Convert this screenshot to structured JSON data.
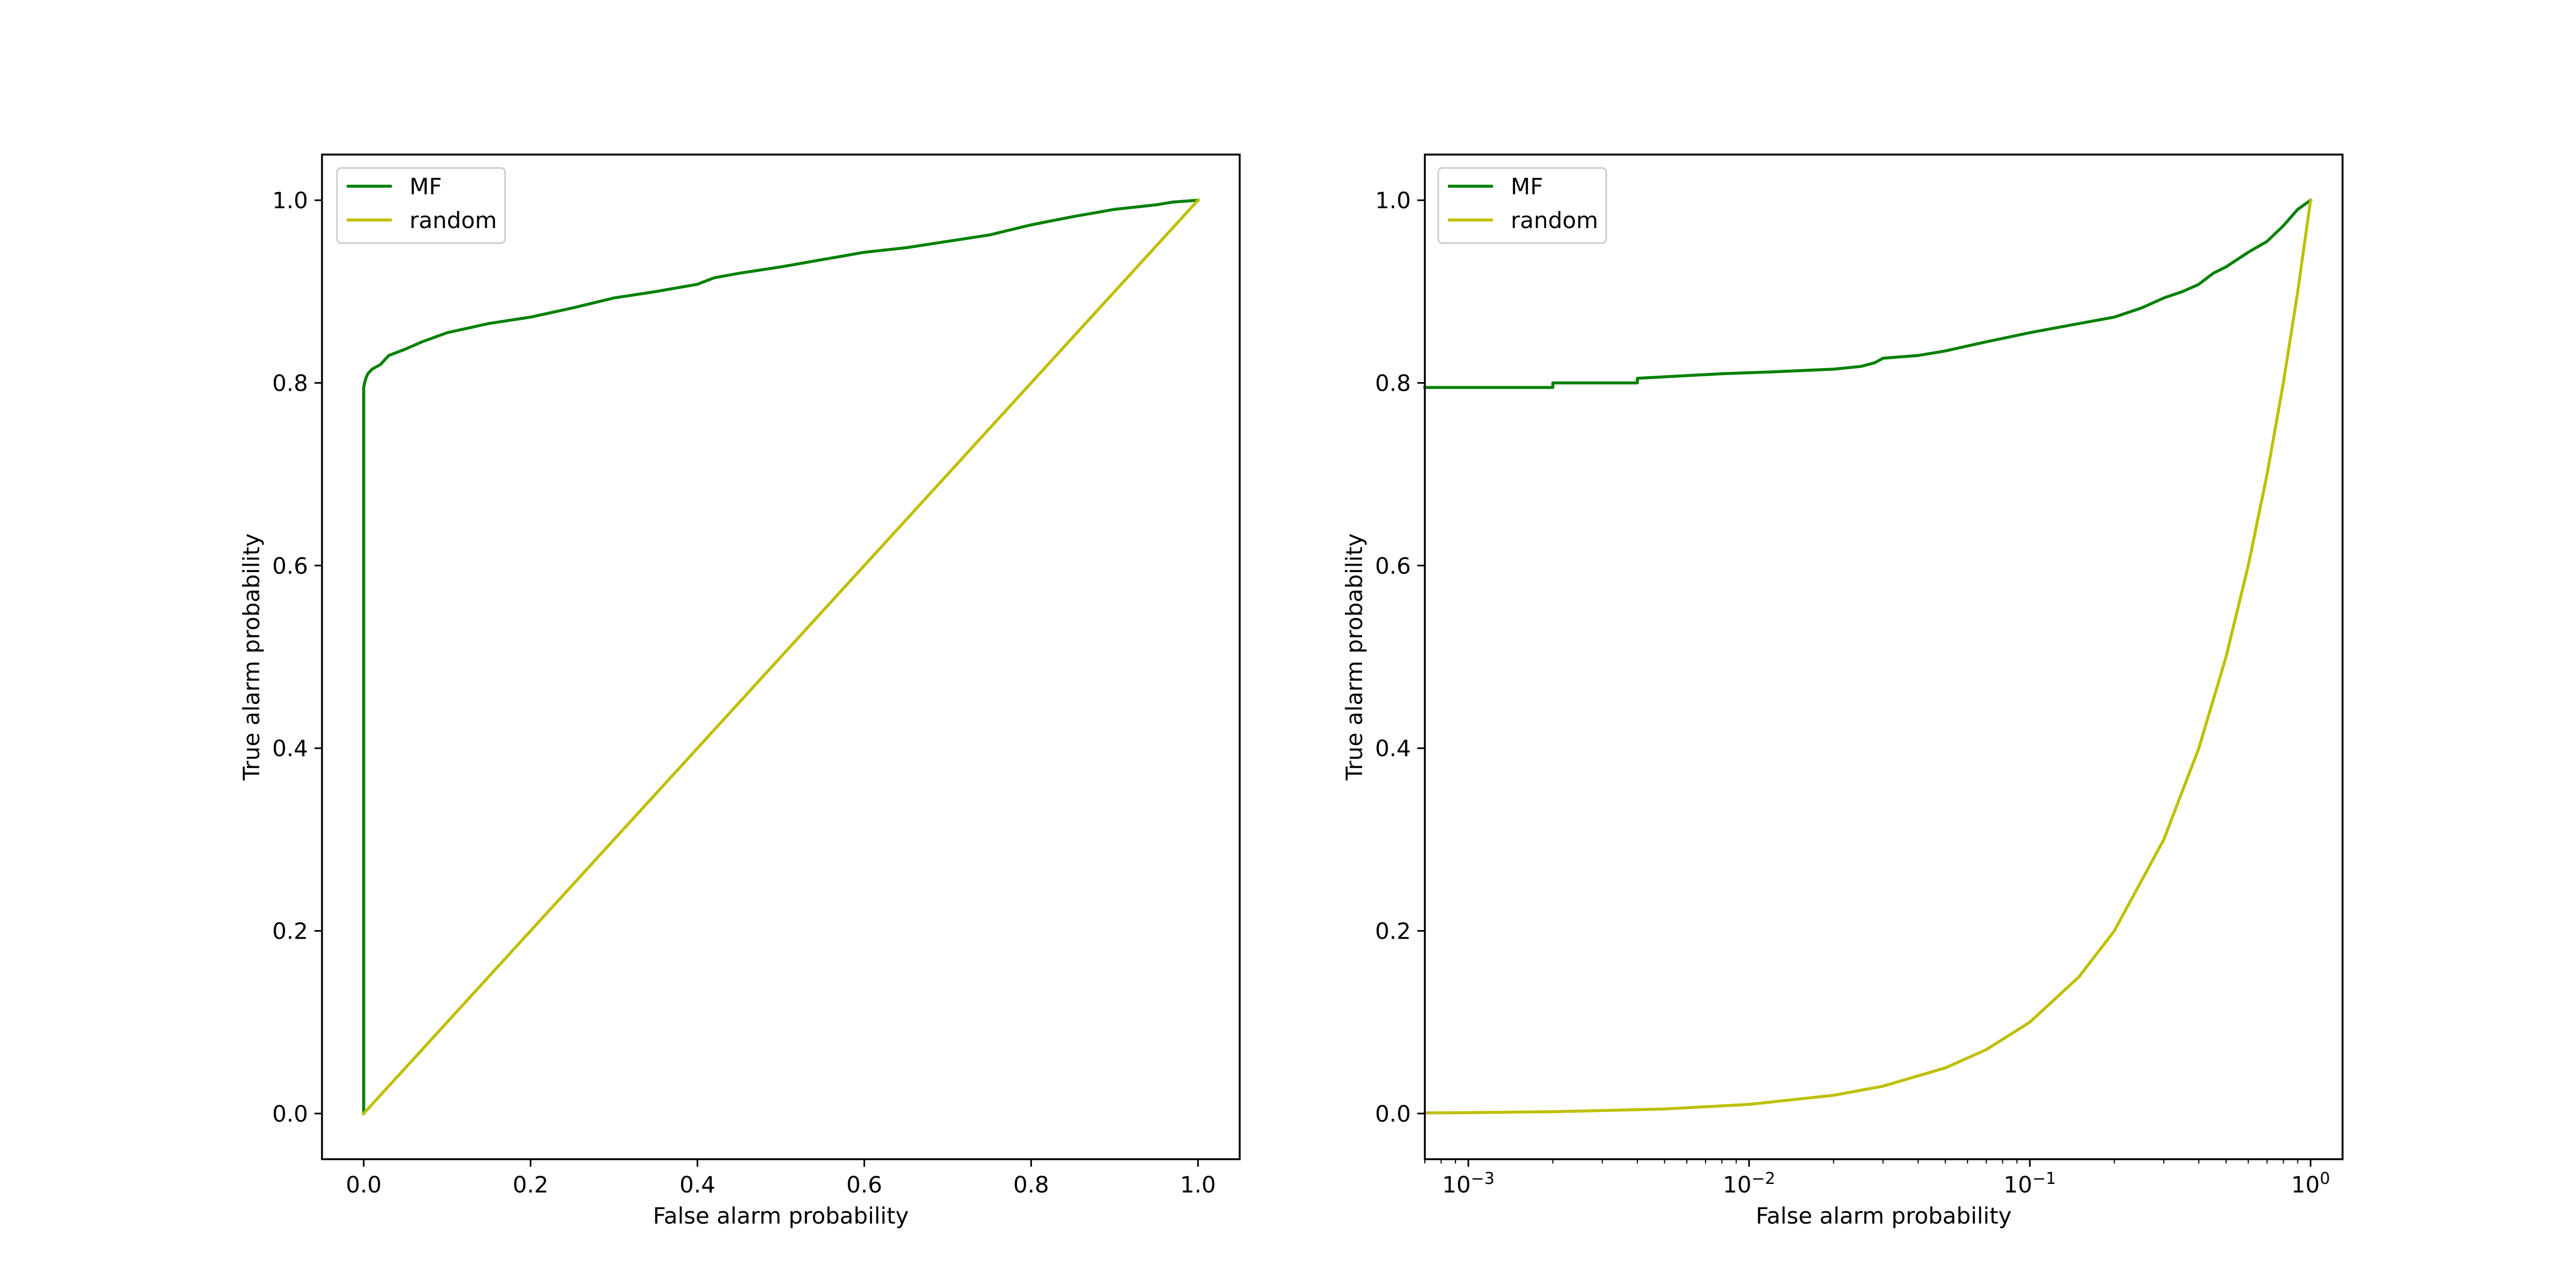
{
  "chart_data": [
    {
      "type": "line",
      "title": "",
      "xlabel": "False alarm probability",
      "ylabel": "True alarm probability",
      "xscale": "linear",
      "xlim": [
        -0.05,
        1.05
      ],
      "ylim": [
        -0.05,
        1.05
      ],
      "xticks": [
        0.0,
        0.2,
        0.4,
        0.6,
        0.8,
        1.0
      ],
      "xtick_labels": [
        "0.0",
        "0.2",
        "0.4",
        "0.6",
        "0.8",
        "1.0"
      ],
      "yticks": [
        0.0,
        0.2,
        0.4,
        0.6,
        0.8,
        1.0
      ],
      "ytick_labels": [
        "0.0",
        "0.2",
        "0.4",
        "0.6",
        "0.8",
        "1.0"
      ],
      "legend": {
        "position": "upper left",
        "entries": [
          "MF",
          "random"
        ]
      },
      "grid": false,
      "series": [
        {
          "name": "MF",
          "color": "#008000",
          "x": [
            0.0,
            0.0,
            0.0,
            0.001,
            0.003,
            0.005,
            0.01,
            0.02,
            0.03,
            0.05,
            0.07,
            0.1,
            0.15,
            0.2,
            0.25,
            0.3,
            0.35,
            0.4,
            0.42,
            0.45,
            0.5,
            0.55,
            0.6,
            0.65,
            0.7,
            0.75,
            0.8,
            0.85,
            0.9,
            0.95,
            0.97,
            1.0
          ],
          "y": [
            0.0,
            0.785,
            0.795,
            0.8,
            0.806,
            0.81,
            0.815,
            0.82,
            0.83,
            0.837,
            0.845,
            0.855,
            0.865,
            0.872,
            0.882,
            0.893,
            0.9,
            0.908,
            0.915,
            0.92,
            0.927,
            0.935,
            0.943,
            0.948,
            0.955,
            0.962,
            0.973,
            0.982,
            0.99,
            0.995,
            0.998,
            1.0
          ]
        },
        {
          "name": "random",
          "color": "#bfbf00",
          "x": [
            0.0,
            1.0
          ],
          "y": [
            0.0,
            1.0
          ]
        }
      ]
    },
    {
      "type": "line",
      "title": "",
      "xlabel": "False alarm probability",
      "ylabel": "True alarm probability",
      "xscale": "log",
      "xlim": [
        0.0007,
        1.3
      ],
      "ylim": [
        -0.05,
        1.05
      ],
      "xticks": [
        0.001,
        0.01,
        0.1,
        1.0
      ],
      "xtick_labels": [
        {
          "base": "10",
          "exp": "−3"
        },
        {
          "base": "10",
          "exp": "−2"
        },
        {
          "base": "10",
          "exp": "−1"
        },
        {
          "base": "10",
          "exp": "0"
        }
      ],
      "yticks": [
        0.0,
        0.2,
        0.4,
        0.6,
        0.8,
        1.0
      ],
      "ytick_labels": [
        "0.0",
        "0.2",
        "0.4",
        "0.6",
        "0.8",
        "1.0"
      ],
      "legend": {
        "position": "upper left",
        "entries": [
          "MF",
          "random"
        ]
      },
      "grid": false,
      "series": [
        {
          "name": "MF",
          "color": "#008000",
          "x": [
            0.0007,
            0.002,
            0.002,
            0.004,
            0.004,
            0.008,
            0.012,
            0.02,
            0.025,
            0.028,
            0.03,
            0.04,
            0.05,
            0.07,
            0.1,
            0.15,
            0.2,
            0.25,
            0.3,
            0.35,
            0.4,
            0.45,
            0.5,
            0.6,
            0.7,
            0.8,
            0.9,
            1.0
          ],
          "y": [
            0.795,
            0.795,
            0.8,
            0.8,
            0.805,
            0.81,
            0.812,
            0.815,
            0.818,
            0.822,
            0.827,
            0.83,
            0.835,
            0.845,
            0.855,
            0.865,
            0.872,
            0.882,
            0.893,
            0.9,
            0.908,
            0.92,
            0.927,
            0.943,
            0.955,
            0.972,
            0.99,
            1.0
          ]
        },
        {
          "name": "random",
          "color": "#bfbf00",
          "x": [
            0.0007,
            0.001,
            0.002,
            0.005,
            0.01,
            0.02,
            0.03,
            0.05,
            0.07,
            0.1,
            0.15,
            0.2,
            0.3,
            0.4,
            0.5,
            0.6,
            0.7,
            0.8,
            0.9,
            1.0
          ],
          "y": [
            0.0007,
            0.001,
            0.002,
            0.005,
            0.01,
            0.02,
            0.03,
            0.05,
            0.07,
            0.1,
            0.15,
            0.2,
            0.3,
            0.4,
            0.5,
            0.6,
            0.7,
            0.8,
            0.9,
            1.0
          ]
        }
      ]
    }
  ]
}
